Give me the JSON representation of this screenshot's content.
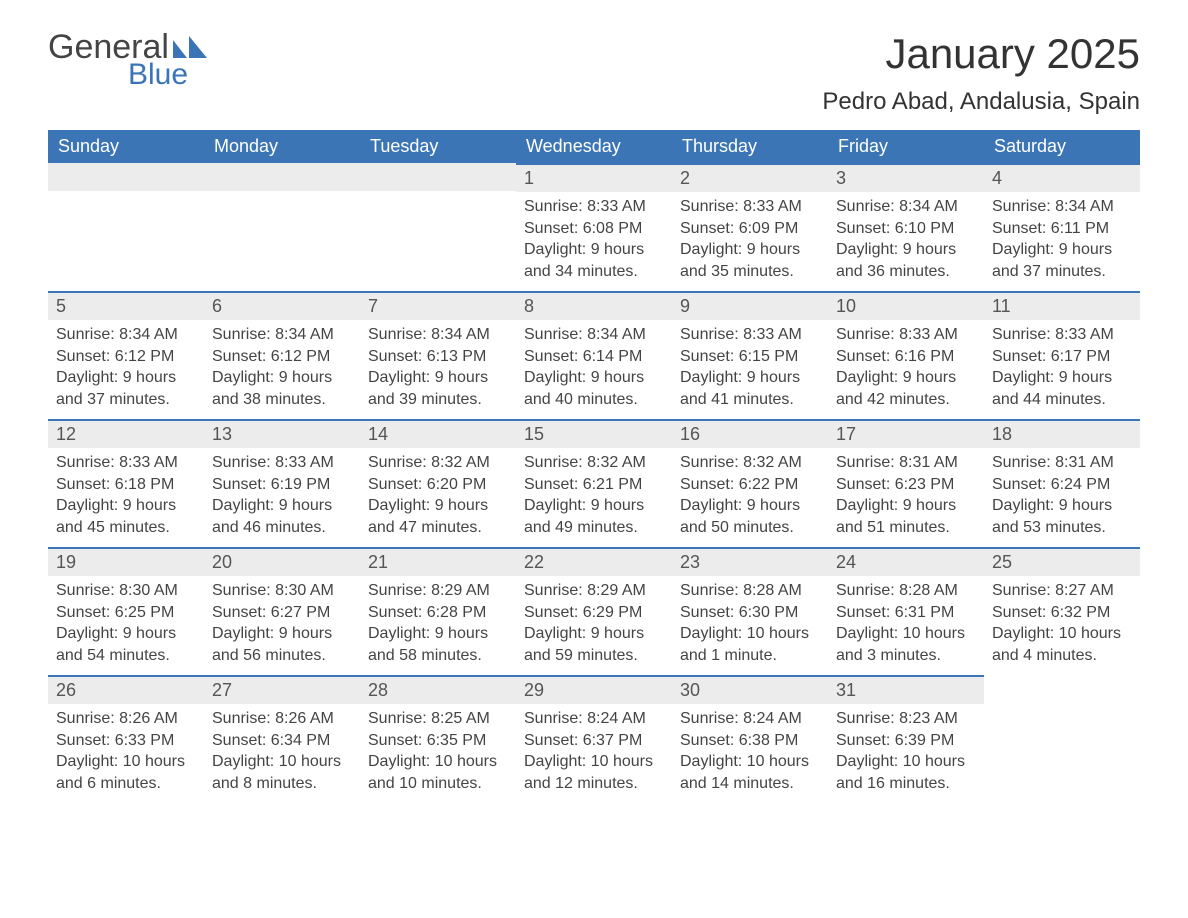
{
  "logo": {
    "word1": "General",
    "word2": "Blue",
    "icon_color": "#3b75b6"
  },
  "title": "January 2025",
  "location": "Pedro Abad, Andalusia, Spain",
  "colors": {
    "header_bg": "#3b75b6",
    "header_text": "#ffffff",
    "daynum_bg": "#ececec",
    "daynum_border": "#3b75b6",
    "body_text": "#444444",
    "page_bg": "#ffffff"
  },
  "dayHeaders": [
    "Sunday",
    "Monday",
    "Tuesday",
    "Wednesday",
    "Thursday",
    "Friday",
    "Saturday"
  ],
  "weeks": [
    [
      null,
      null,
      null,
      {
        "n": "1",
        "sunrise": "8:33 AM",
        "sunset": "6:08 PM",
        "daylight": "9 hours and 34 minutes."
      },
      {
        "n": "2",
        "sunrise": "8:33 AM",
        "sunset": "6:09 PM",
        "daylight": "9 hours and 35 minutes."
      },
      {
        "n": "3",
        "sunrise": "8:34 AM",
        "sunset": "6:10 PM",
        "daylight": "9 hours and 36 minutes."
      },
      {
        "n": "4",
        "sunrise": "8:34 AM",
        "sunset": "6:11 PM",
        "daylight": "9 hours and 37 minutes."
      }
    ],
    [
      {
        "n": "5",
        "sunrise": "8:34 AM",
        "sunset": "6:12 PM",
        "daylight": "9 hours and 37 minutes."
      },
      {
        "n": "6",
        "sunrise": "8:34 AM",
        "sunset": "6:12 PM",
        "daylight": "9 hours and 38 minutes."
      },
      {
        "n": "7",
        "sunrise": "8:34 AM",
        "sunset": "6:13 PM",
        "daylight": "9 hours and 39 minutes."
      },
      {
        "n": "8",
        "sunrise": "8:34 AM",
        "sunset": "6:14 PM",
        "daylight": "9 hours and 40 minutes."
      },
      {
        "n": "9",
        "sunrise": "8:33 AM",
        "sunset": "6:15 PM",
        "daylight": "9 hours and 41 minutes."
      },
      {
        "n": "10",
        "sunrise": "8:33 AM",
        "sunset": "6:16 PM",
        "daylight": "9 hours and 42 minutes."
      },
      {
        "n": "11",
        "sunrise": "8:33 AM",
        "sunset": "6:17 PM",
        "daylight": "9 hours and 44 minutes."
      }
    ],
    [
      {
        "n": "12",
        "sunrise": "8:33 AM",
        "sunset": "6:18 PM",
        "daylight": "9 hours and 45 minutes."
      },
      {
        "n": "13",
        "sunrise": "8:33 AM",
        "sunset": "6:19 PM",
        "daylight": "9 hours and 46 minutes."
      },
      {
        "n": "14",
        "sunrise": "8:32 AM",
        "sunset": "6:20 PM",
        "daylight": "9 hours and 47 minutes."
      },
      {
        "n": "15",
        "sunrise": "8:32 AM",
        "sunset": "6:21 PM",
        "daylight": "9 hours and 49 minutes."
      },
      {
        "n": "16",
        "sunrise": "8:32 AM",
        "sunset": "6:22 PM",
        "daylight": "9 hours and 50 minutes."
      },
      {
        "n": "17",
        "sunrise": "8:31 AM",
        "sunset": "6:23 PM",
        "daylight": "9 hours and 51 minutes."
      },
      {
        "n": "18",
        "sunrise": "8:31 AM",
        "sunset": "6:24 PM",
        "daylight": "9 hours and 53 minutes."
      }
    ],
    [
      {
        "n": "19",
        "sunrise": "8:30 AM",
        "sunset": "6:25 PM",
        "daylight": "9 hours and 54 minutes."
      },
      {
        "n": "20",
        "sunrise": "8:30 AM",
        "sunset": "6:27 PM",
        "daylight": "9 hours and 56 minutes."
      },
      {
        "n": "21",
        "sunrise": "8:29 AM",
        "sunset": "6:28 PM",
        "daylight": "9 hours and 58 minutes."
      },
      {
        "n": "22",
        "sunrise": "8:29 AM",
        "sunset": "6:29 PM",
        "daylight": "9 hours and 59 minutes."
      },
      {
        "n": "23",
        "sunrise": "8:28 AM",
        "sunset": "6:30 PM",
        "daylight": "10 hours and 1 minute."
      },
      {
        "n": "24",
        "sunrise": "8:28 AM",
        "sunset": "6:31 PM",
        "daylight": "10 hours and 3 minutes."
      },
      {
        "n": "25",
        "sunrise": "8:27 AM",
        "sunset": "6:32 PM",
        "daylight": "10 hours and 4 minutes."
      }
    ],
    [
      {
        "n": "26",
        "sunrise": "8:26 AM",
        "sunset": "6:33 PM",
        "daylight": "10 hours and 6 minutes."
      },
      {
        "n": "27",
        "sunrise": "8:26 AM",
        "sunset": "6:34 PM",
        "daylight": "10 hours and 8 minutes."
      },
      {
        "n": "28",
        "sunrise": "8:25 AM",
        "sunset": "6:35 PM",
        "daylight": "10 hours and 10 minutes."
      },
      {
        "n": "29",
        "sunrise": "8:24 AM",
        "sunset": "6:37 PM",
        "daylight": "10 hours and 12 minutes."
      },
      {
        "n": "30",
        "sunrise": "8:24 AM",
        "sunset": "6:38 PM",
        "daylight": "10 hours and 14 minutes."
      },
      {
        "n": "31",
        "sunrise": "8:23 AM",
        "sunset": "6:39 PM",
        "daylight": "10 hours and 16 minutes."
      },
      null
    ]
  ],
  "labels": {
    "sunrise": "Sunrise: ",
    "sunset": "Sunset: ",
    "daylight": "Daylight: "
  }
}
